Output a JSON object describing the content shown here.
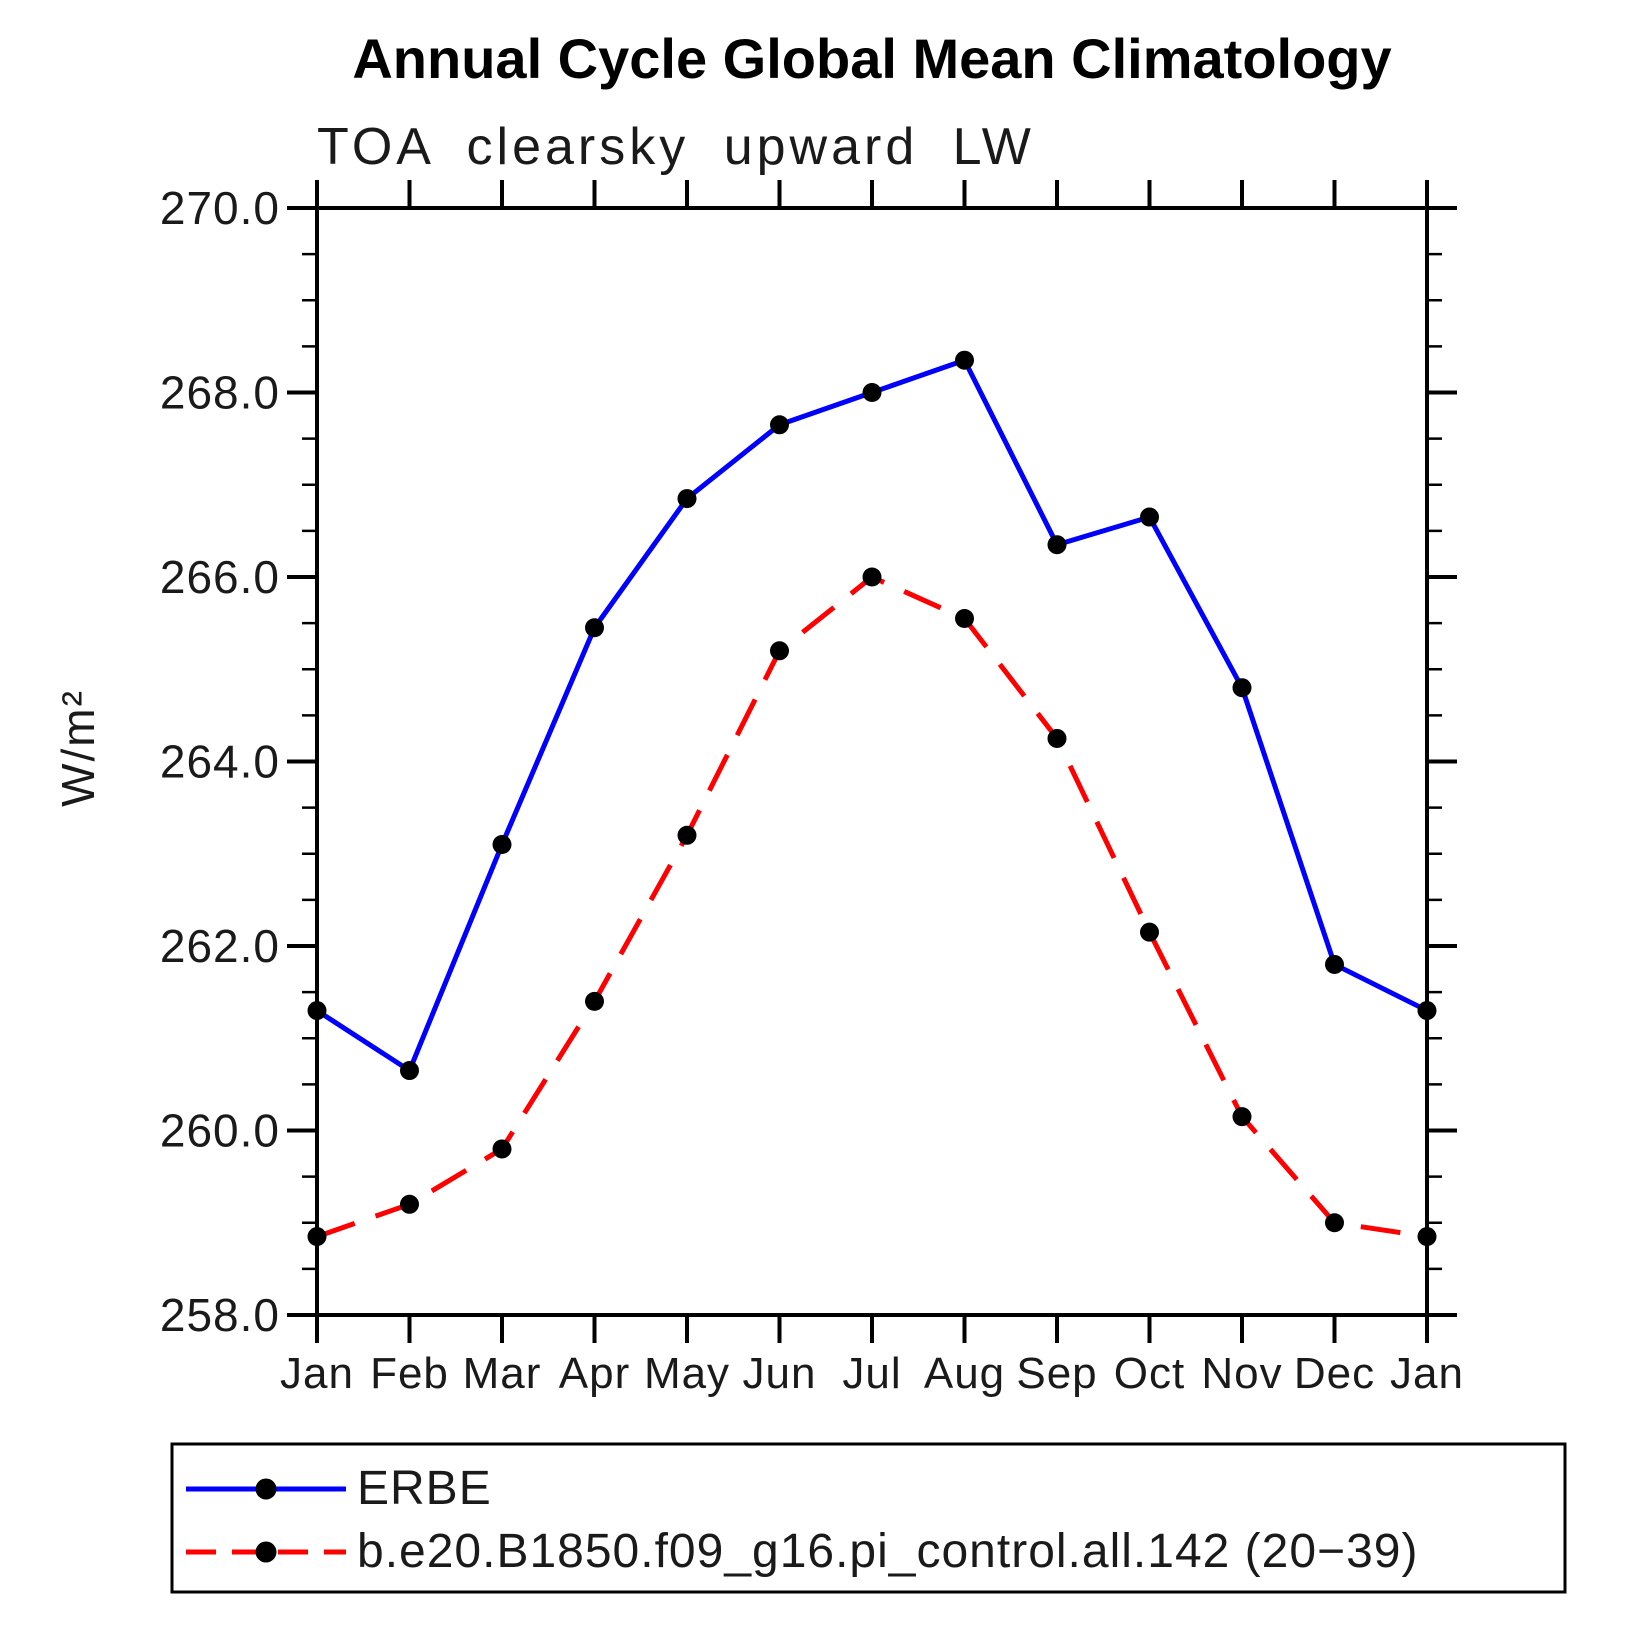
{
  "chart_data": {
    "type": "line",
    "title": "Annual Cycle Global Mean Climatology",
    "subtitle": "TOA clearsky upward LW",
    "ylabel": "W/m²",
    "xlabel": "",
    "categories": [
      "Jan",
      "Feb",
      "Mar",
      "Apr",
      "May",
      "Jun",
      "Jul",
      "Aug",
      "Sep",
      "Oct",
      "Nov",
      "Dec",
      "Jan"
    ],
    "ylim": [
      258.0,
      270.0
    ],
    "y_major_tick_step": 2.0,
    "y_minor_tick_step": 0.5,
    "y_tick_labels": [
      "258.0",
      "260.0",
      "262.0",
      "264.0",
      "266.0",
      "268.0",
      "270.0"
    ],
    "grid": false,
    "frame": "box-with-outward-ticks",
    "legend_position": "bottom-left-box",
    "axis_color": "#000000",
    "series": [
      {
        "name": "ERBE",
        "color": "#0000ff",
        "line_style": "solid",
        "marker": "filled-circle",
        "marker_color": "#000000",
        "values": [
          261.3,
          260.65,
          263.1,
          265.45,
          266.85,
          267.65,
          268.0,
          268.35,
          266.35,
          266.65,
          264.8,
          261.8,
          261.3
        ]
      },
      {
        "name": "b.e20.B1850.f09_g16.pi_control.all.142 (20−39)",
        "color": "#ff0000",
        "line_style": "dashed",
        "marker": "filled-circle",
        "marker_color": "#000000",
        "values": [
          258.85,
          259.2,
          259.8,
          261.4,
          263.2,
          265.2,
          266.0,
          265.55,
          264.25,
          262.15,
          260.15,
          259.0,
          258.85
        ]
      }
    ]
  }
}
